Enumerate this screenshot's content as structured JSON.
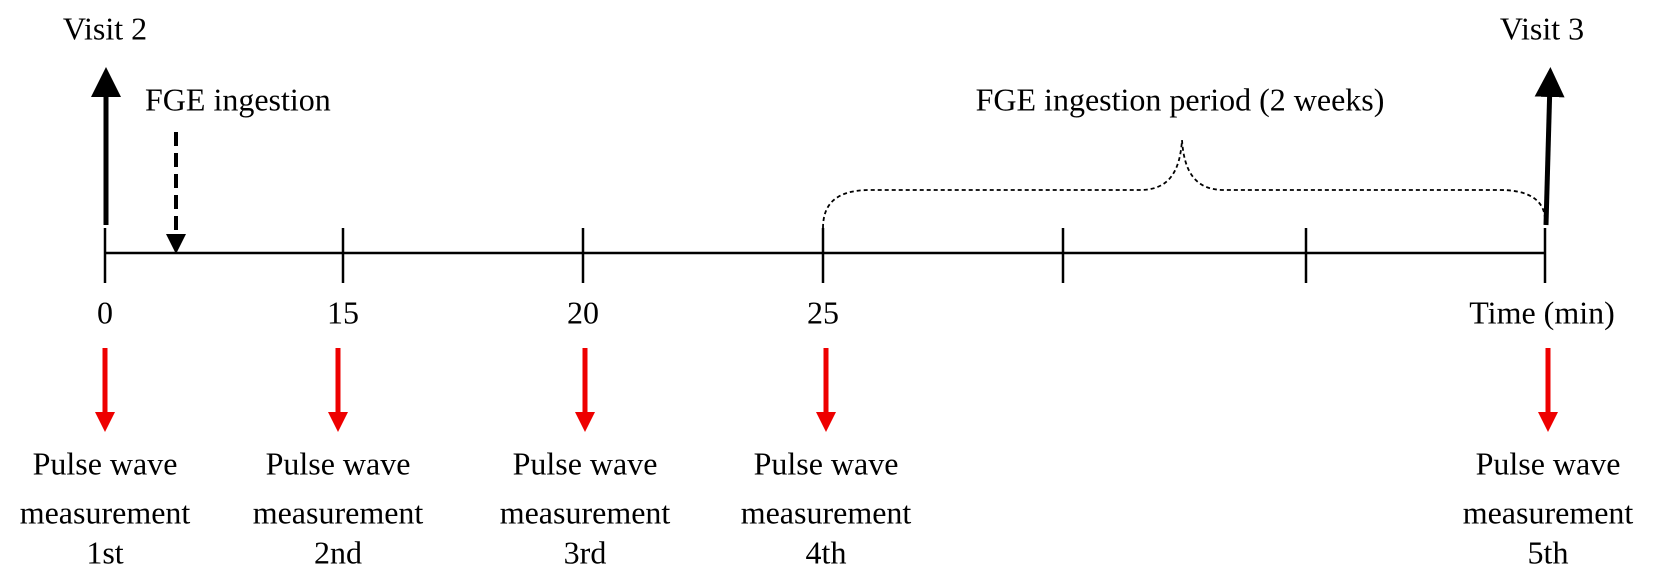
{
  "visits": [
    "Visit 2",
    "Visit 3"
  ],
  "ingestion": "FGE ingestion",
  "period": "FGE ingestion period (2 weeks)",
  "time_labels": [
    "0",
    "15",
    "20",
    "25",
    "Time (min)"
  ],
  "measurements": [
    {
      "lines": [
        "Pulse wave",
        "measurement",
        "1st"
      ]
    },
    {
      "lines": [
        "Pulse wave",
        "measurement",
        "2nd"
      ]
    },
    {
      "lines": [
        "Pulse wave",
        "measurement",
        "3rd"
      ]
    },
    {
      "lines": [
        "Pulse wave",
        "measurement",
        "4th"
      ]
    },
    {
      "lines": [
        "Pulse wave",
        "measurement",
        "5th"
      ]
    }
  ]
}
